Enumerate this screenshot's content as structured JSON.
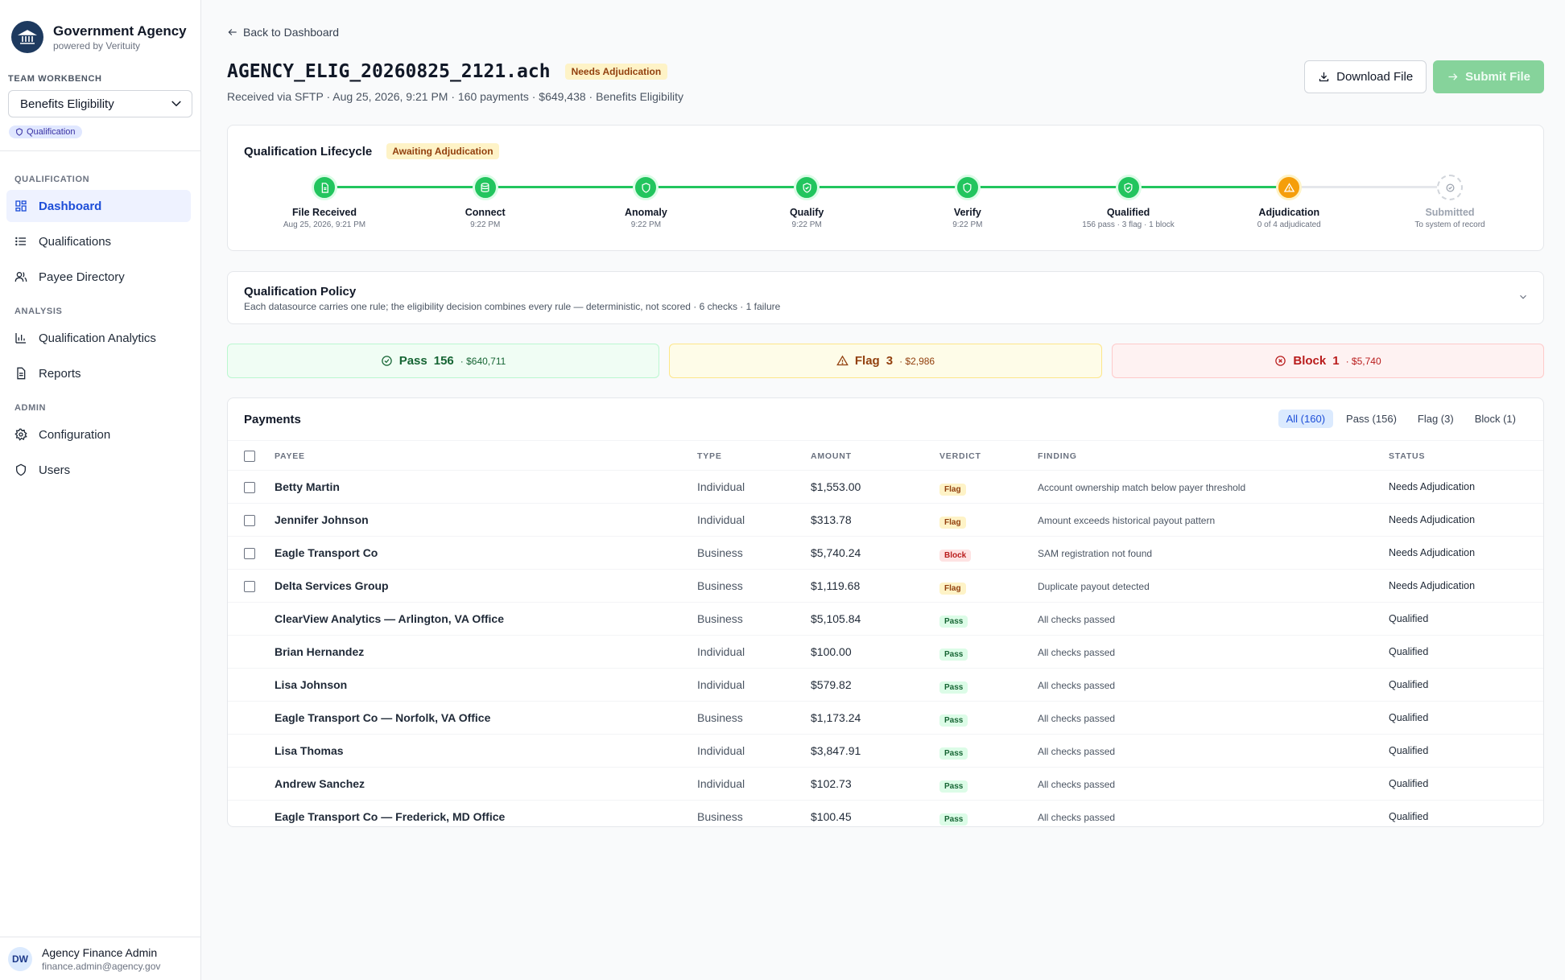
{
  "org": {
    "name": "Government Agency",
    "powered_by": "powered by Verituity"
  },
  "team": {
    "label": "TEAM WORKBENCH",
    "selected": "Benefits Eligibility",
    "badge": "Qualification"
  },
  "nav": {
    "groups": [
      {
        "label": "QUALIFICATION",
        "items": [
          {
            "label": "Dashboard",
            "icon": "dashboard-icon",
            "active": true
          },
          {
            "label": "Qualifications",
            "icon": "list-icon",
            "active": false
          },
          {
            "label": "Payee Directory",
            "icon": "users-icon",
            "active": false
          }
        ]
      },
      {
        "label": "ANALYSIS",
        "items": [
          {
            "label": "Qualification Analytics",
            "icon": "bar-chart-icon",
            "active": false
          },
          {
            "label": "Reports",
            "icon": "document-icon",
            "active": false
          }
        ]
      },
      {
        "label": "ADMIN",
        "items": [
          {
            "label": "Configuration",
            "icon": "gear-icon",
            "active": false
          },
          {
            "label": "Users",
            "icon": "shield-icon",
            "active": false
          }
        ]
      }
    ]
  },
  "user": {
    "initials": "DW",
    "name": "Agency Finance Admin",
    "email": "finance.admin@agency.gov"
  },
  "header": {
    "back_label": "Back to Dashboard",
    "file_name": "AGENCY_ELIG_20260825_2121.ach",
    "status_badge": "Needs Adjudication",
    "meta": "Received via SFTP · Aug 25, 2026, 9:21 PM · 160 payments · $649,438 · Benefits Eligibility",
    "download_label": "Download File",
    "submit_label": "Submit File"
  },
  "lifecycle": {
    "title": "Qualification Lifecycle",
    "status_badge": "Awaiting Adjudication",
    "steps": [
      {
        "name": "File Received",
        "sub": "Aug 25, 2026, 9:21 PM",
        "state": "done",
        "icon": "file-icon"
      },
      {
        "name": "Connect",
        "sub": "9:22 PM",
        "state": "done",
        "icon": "database-icon"
      },
      {
        "name": "Anomaly",
        "sub": "9:22 PM",
        "state": "done",
        "icon": "shield-icon"
      },
      {
        "name": "Qualify",
        "sub": "9:22 PM",
        "state": "done",
        "icon": "shield-check-icon"
      },
      {
        "name": "Verify",
        "sub": "9:22 PM",
        "state": "done",
        "icon": "shield-icon"
      },
      {
        "name": "Qualified",
        "sub": "156 pass · 3 flag · 1 block",
        "state": "done",
        "icon": "shield-check-icon"
      },
      {
        "name": "Adjudication",
        "sub": "0 of 4 adjudicated",
        "state": "current",
        "icon": "warning-icon"
      },
      {
        "name": "Submitted",
        "sub": "To system of record",
        "state": "pending",
        "icon": "check-circle-icon"
      }
    ],
    "colors": {
      "done": "#22c55e",
      "current": "#f59e0b",
      "pending": "#e5e7eb"
    }
  },
  "policy": {
    "title": "Qualification Policy",
    "description": "Each datasource carries one rule; the eligibility decision combines every rule — deterministic, not scored · 6 checks · 1 failure"
  },
  "summary": {
    "pass": {
      "label": "Pass",
      "count": "156",
      "amount": "· $640,711"
    },
    "flag": {
      "label": "Flag",
      "count": "3",
      "amount": "· $2,986"
    },
    "block": {
      "label": "Block",
      "count": "1",
      "amount": "· $5,740"
    }
  },
  "payments": {
    "title": "Payments",
    "filters": [
      "All (160)",
      "Pass (156)",
      "Flag (3)",
      "Block (1)"
    ],
    "active_filter": 0,
    "columns": {
      "payee": "PAYEE",
      "type": "TYPE",
      "amount": "AMOUNT",
      "verdict": "VERDICT",
      "finding": "FINDING",
      "status": "STATUS"
    },
    "rows": [
      {
        "payee": "Betty Martin",
        "type": "Individual",
        "amount": "$1,553.00",
        "verdict": "Flag",
        "finding": "Account ownership match below payer threshold",
        "status": "Needs Adjudication",
        "selectable": true
      },
      {
        "payee": "Jennifer Johnson",
        "type": "Individual",
        "amount": "$313.78",
        "verdict": "Flag",
        "finding": "Amount exceeds historical payout pattern",
        "status": "Needs Adjudication",
        "selectable": true
      },
      {
        "payee": "Eagle Transport Co",
        "type": "Business",
        "amount": "$5,740.24",
        "verdict": "Block",
        "finding": "SAM registration not found",
        "status": "Needs Adjudication",
        "selectable": true
      },
      {
        "payee": "Delta Services Group",
        "type": "Business",
        "amount": "$1,119.68",
        "verdict": "Flag",
        "finding": "Duplicate payout detected",
        "status": "Needs Adjudication",
        "selectable": true
      },
      {
        "payee": "ClearView Analytics — Arlington, VA Office",
        "type": "Business",
        "amount": "$5,105.84",
        "verdict": "Pass",
        "finding": "All checks passed",
        "status": "Qualified",
        "selectable": false
      },
      {
        "payee": "Brian Hernandez",
        "type": "Individual",
        "amount": "$100.00",
        "verdict": "Pass",
        "finding": "All checks passed",
        "status": "Qualified",
        "selectable": false
      },
      {
        "payee": "Lisa Johnson",
        "type": "Individual",
        "amount": "$579.82",
        "verdict": "Pass",
        "finding": "All checks passed",
        "status": "Qualified",
        "selectable": false
      },
      {
        "payee": "Eagle Transport Co — Norfolk, VA Office",
        "type": "Business",
        "amount": "$1,173.24",
        "verdict": "Pass",
        "finding": "All checks passed",
        "status": "Qualified",
        "selectable": false
      },
      {
        "payee": "Lisa Thomas",
        "type": "Individual",
        "amount": "$3,847.91",
        "verdict": "Pass",
        "finding": "All checks passed",
        "status": "Qualified",
        "selectable": false
      },
      {
        "payee": "Andrew Sanchez",
        "type": "Individual",
        "amount": "$102.73",
        "verdict": "Pass",
        "finding": "All checks passed",
        "status": "Qualified",
        "selectable": false
      },
      {
        "payee": "Eagle Transport Co — Frederick, MD Office",
        "type": "Business",
        "amount": "$100.45",
        "verdict": "Pass",
        "finding": "All checks passed",
        "status": "Qualified",
        "selectable": false
      }
    ]
  }
}
